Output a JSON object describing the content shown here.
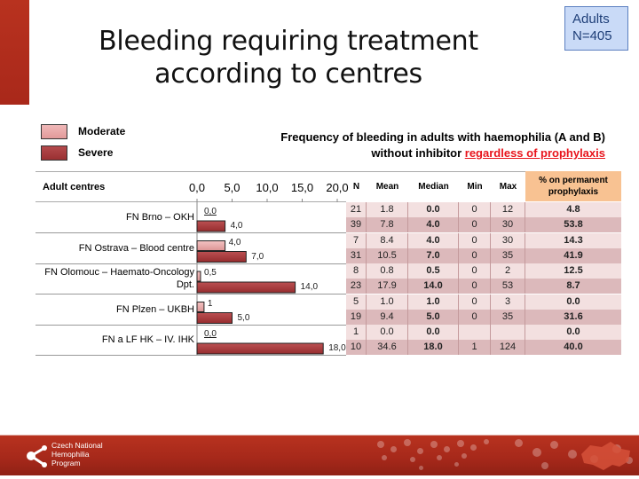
{
  "badge": {
    "line1": "Adults",
    "line2": "N=405"
  },
  "title": {
    "line1": "Bleeding requiring treatment",
    "line2": "according to centres"
  },
  "subtitle": {
    "line1": "Frequency of bleeding in adults with haemophilia (A and B)",
    "line2_plain": "without inhibitor ",
    "line2_highlight": "regardless of prophylaxis"
  },
  "colors": {
    "moderate": "#e7a5a5",
    "severe": "#a83a3c",
    "pct_header": "#f8c292",
    "brand": "#b8321f",
    "highlight": "#e8141c"
  },
  "table": {
    "centres_header": "Adult centres",
    "columns": [
      "N",
      "Mean",
      "Median",
      "Min",
      "Max",
      "% on permanent prophylaxis"
    ],
    "rows": [
      {
        "centre": "FN Brno – OKH",
        "severity": "Moderate",
        "N": "21",
        "Mean": "1.8",
        "Median": "0.0",
        "Min": "0",
        "Max": "12",
        "Pct": "4.8"
      },
      {
        "centre": "FN Brno – OKH",
        "severity": "Severe",
        "N": "39",
        "Mean": "7.8",
        "Median": "4.0",
        "Min": "0",
        "Max": "30",
        "Pct": "53.8"
      },
      {
        "centre": "FN Ostrava – Blood centre",
        "severity": "Moderate",
        "N": "7",
        "Mean": "8.4",
        "Median": "4.0",
        "Min": "0",
        "Max": "30",
        "Pct": "14.3"
      },
      {
        "centre": "FN Ostrava – Blood centre",
        "severity": "Severe",
        "N": "31",
        "Mean": "10.5",
        "Median": "7.0",
        "Min": "0",
        "Max": "35",
        "Pct": "41.9"
      },
      {
        "centre": "FN Olomouc – Haemato-Oncology Dpt.",
        "severity": "Moderate",
        "N": "8",
        "Mean": "0.8",
        "Median": "0.5",
        "Min": "0",
        "Max": "2",
        "Pct": "12.5"
      },
      {
        "centre": "FN Olomouc – Haemato-Oncology Dpt.",
        "severity": "Severe",
        "N": "23",
        "Mean": "17.9",
        "Median": "14.0",
        "Min": "0",
        "Max": "53",
        "Pct": "8.7"
      },
      {
        "centre": "FN Plzen – UKBH",
        "severity": "Moderate",
        "N": "5",
        "Mean": "1.0",
        "Median": "1.0",
        "Min": "0",
        "Max": "3",
        "Pct": "0.0"
      },
      {
        "centre": "FN Plzen – UKBH",
        "severity": "Severe",
        "N": "19",
        "Mean": "9.4",
        "Median": "5.0",
        "Min": "0",
        "Max": "35",
        "Pct": "31.6"
      },
      {
        "centre": "FN a LF HK – IV. IHK",
        "severity": "Moderate",
        "N": "1",
        "Mean": "0.0",
        "Median": "0.0",
        "Min": "",
        "Max": "",
        "Pct": "0.0"
      },
      {
        "centre": "FN a LF HK – IV. IHK",
        "severity": "Severe",
        "N": "10",
        "Mean": "34.6",
        "Median": "18.0",
        "Min": "1",
        "Max": "124",
        "Pct": "40.0"
      }
    ]
  },
  "chart_data": {
    "type": "bar",
    "orientation": "horizontal",
    "title": "",
    "xlabel": "",
    "ylabel": "Adult centres",
    "xlim": [
      0,
      20
    ],
    "xticks": [
      "0,0",
      "5,0",
      "10,0",
      "15,0",
      "20,0"
    ],
    "categories": [
      "FN Brno – OKH",
      "FN Ostrava – Blood centre",
      "FN Olomouc – Haemato-Oncology Dpt.",
      "FN Plzen – UKBH",
      "FN a LF HK – IV. IHK"
    ],
    "series": [
      {
        "name": "Moderate",
        "values": [
          0.0,
          4.0,
          0.5,
          1.0,
          0.0
        ],
        "labels": [
          "0,0",
          "4,0",
          "0,5",
          "1",
          "0,0"
        ]
      },
      {
        "name": "Severe",
        "values": [
          4.0,
          7.0,
          14.0,
          5.0,
          18.0
        ],
        "labels": [
          "4,0",
          "7,0",
          "14,0",
          "5,0",
          "18,0"
        ]
      }
    ],
    "legend": "top-left",
    "grid": false
  },
  "footer": {
    "org_line1": "Czech National",
    "org_line2": "Hemophilia",
    "org_line3": "Program"
  }
}
